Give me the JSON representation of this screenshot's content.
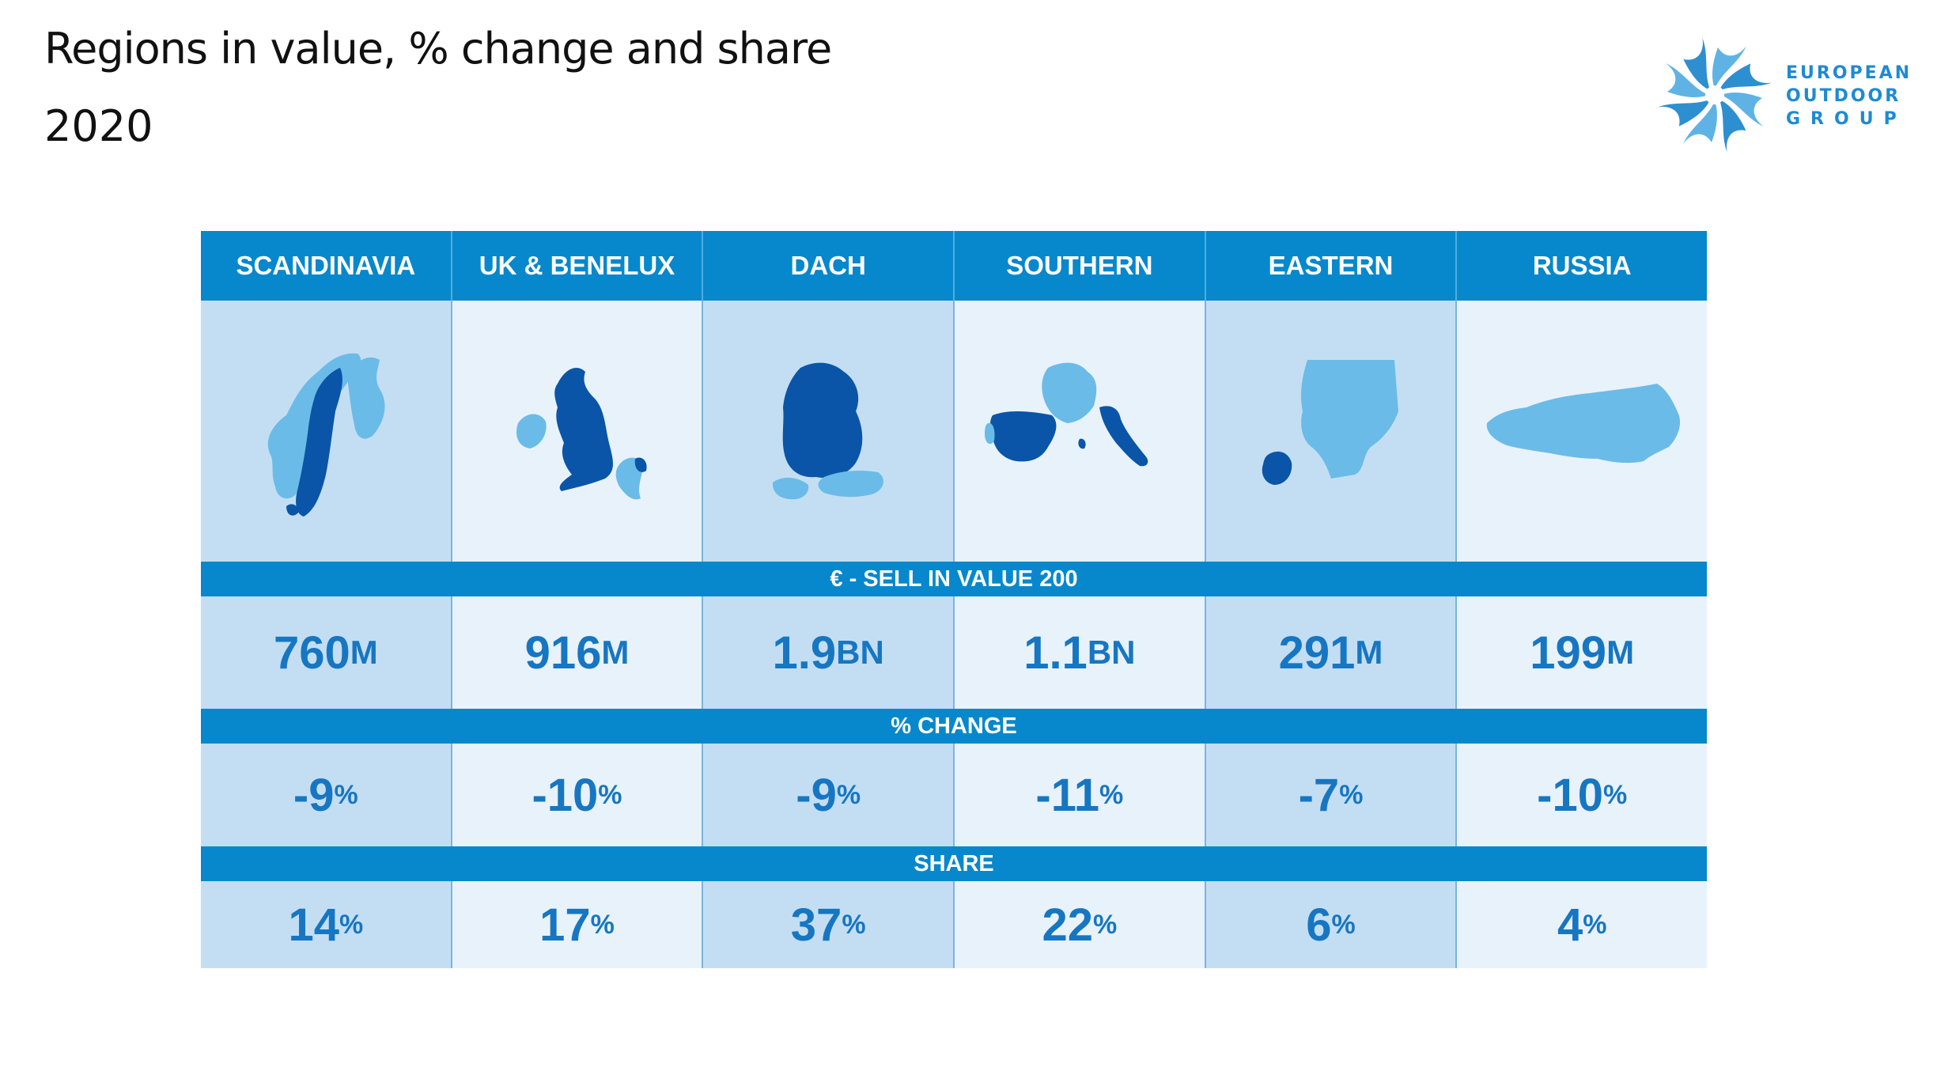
{
  "title": "Regions in value, % change and share",
  "subtitle": "2020",
  "logo": {
    "line1": "EUROPEAN",
    "line2": "OUTDOOR",
    "line3": "GROUP",
    "icon": "pinwheel-logo-icon"
  },
  "colors": {
    "header_blue": "#0788cc",
    "cell_dark": "#c3def3",
    "cell_light": "#e8f2fa",
    "value_text": "#1776c2",
    "map_dark": "#0a55a8",
    "map_light": "#6bbbe8"
  },
  "chart_data": {
    "type": "table",
    "title": "Regions in value, % change and share",
    "subtitle": "2020",
    "columns": [
      "SCANDINAVIA",
      "UK & BENELUX",
      "DACH",
      "SOUTHERN",
      "EASTERN",
      "RUSSIA"
    ],
    "sections": [
      {
        "label": "€ - SELL IN VALUE 200",
        "values": [
          {
            "num": "760",
            "unit": "M"
          },
          {
            "num": "916",
            "unit": "M"
          },
          {
            "num": "1.9",
            "unit": "BN"
          },
          {
            "num": "1.1",
            "unit": "BN"
          },
          {
            "num": "291",
            "unit": "M"
          },
          {
            "num": "199",
            "unit": "M"
          }
        ]
      },
      {
        "label": "% CHANGE",
        "values": [
          {
            "num": "-9",
            "unit": "%"
          },
          {
            "num": "-10",
            "unit": "%"
          },
          {
            "num": "-9",
            "unit": "%"
          },
          {
            "num": "-11",
            "unit": "%"
          },
          {
            "num": "-7",
            "unit": "%"
          },
          {
            "num": "-10",
            "unit": "%"
          }
        ]
      },
      {
        "label": "SHARE",
        "values": [
          {
            "num": "14",
            "unit": "%"
          },
          {
            "num": "17",
            "unit": "%"
          },
          {
            "num": "37",
            "unit": "%"
          },
          {
            "num": "22",
            "unit": "%"
          },
          {
            "num": "6",
            "unit": "%"
          },
          {
            "num": "4",
            "unit": "%"
          }
        ]
      }
    ],
    "maps": [
      "scandinavia-map-icon",
      "uk-benelux-map-icon",
      "dach-map-icon",
      "southern-europe-map-icon",
      "eastern-europe-map-icon",
      "russia-map-icon"
    ]
  }
}
